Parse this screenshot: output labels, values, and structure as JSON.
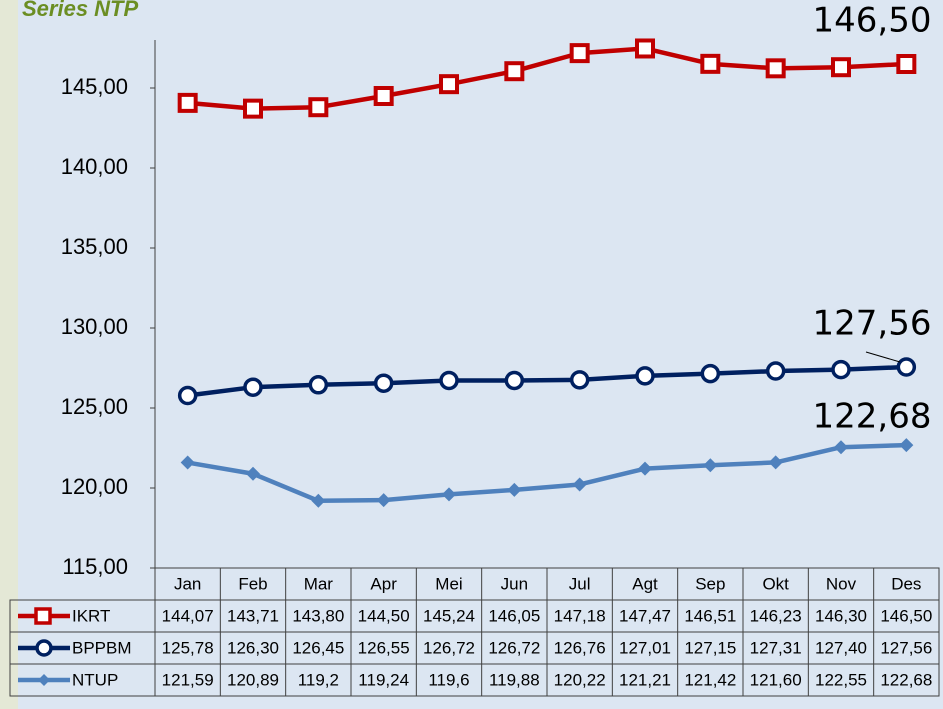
{
  "chart_data": {
    "type": "line",
    "title": "Series NTP",
    "categories": [
      "Jan",
      "Feb",
      "Mar",
      "Apr",
      "Mei",
      "Jun",
      "Jul",
      "Agt",
      "Sep",
      "Okt",
      "Nov",
      "Des"
    ],
    "ylim": [
      115,
      148
    ],
    "yticks": [
      {
        "value": 115,
        "label": "115,00"
      },
      {
        "value": 120,
        "label": "120,00"
      },
      {
        "value": 125,
        "label": "125,00"
      },
      {
        "value": 130,
        "label": "130,00"
      },
      {
        "value": 135,
        "label": "135,00"
      },
      {
        "value": 140,
        "label": "140,00"
      },
      {
        "value": 145,
        "label": "145,00"
      }
    ],
    "series": [
      {
        "name": "IKRT",
        "color": "#c00000",
        "marker": "square",
        "values": [
          144.07,
          143.71,
          143.8,
          144.5,
          145.24,
          146.05,
          147.18,
          147.47,
          146.51,
          146.23,
          146.3,
          146.5
        ],
        "value_labels": [
          "144,07",
          "143,71",
          "143,80",
          "144,50",
          "145,24",
          "146,05",
          "147,18",
          "147,47",
          "146,51",
          "146,23",
          "146,30",
          "146,50"
        ]
      },
      {
        "name": "BPPBM",
        "color": "#002060",
        "marker": "circle",
        "values": [
          125.78,
          126.3,
          126.45,
          126.55,
          126.72,
          126.72,
          126.76,
          127.01,
          127.15,
          127.31,
          127.4,
          127.56
        ],
        "value_labels": [
          "125,78",
          "126,30",
          "126,45",
          "126,55",
          "126,72",
          "126,72",
          "126,76",
          "127,01",
          "127,15",
          "127,31",
          "127,40",
          "127,56"
        ]
      },
      {
        "name": "NTUP",
        "color": "#4f81bd",
        "marker": "diamond",
        "values": [
          121.59,
          120.89,
          119.2,
          119.24,
          119.6,
          119.88,
          120.22,
          121.21,
          121.42,
          121.6,
          122.55,
          122.68
        ],
        "value_labels": [
          "121,59",
          "120,89",
          "119,2",
          "119,24",
          "119,6",
          "119,88",
          "120,22",
          "121,21",
          "121,42",
          "121,60",
          "122,55",
          "122,68"
        ]
      }
    ]
  }
}
